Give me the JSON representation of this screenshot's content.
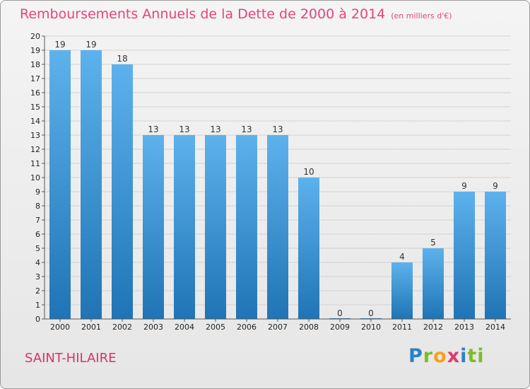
{
  "title": {
    "main": "Remboursements Annuels de la Dette de 2000 à 2014",
    "unit": "(en milliers d'€)"
  },
  "commune": "SAINT-HILAIRE",
  "logo": [
    "P",
    "r",
    "o",
    "x",
    "i",
    "ti"
  ],
  "colors": {
    "bar_light": "#5db2ec",
    "bar_dark": "#1f74b5",
    "title": "#e8437a"
  },
  "chart_data": {
    "type": "bar",
    "title": "Remboursements Annuels de la Dette de 2000 à 2014",
    "ylabel": "en milliers d'€",
    "xlabel": "",
    "ylim": [
      0,
      20
    ],
    "ytick_labels": [
      "0",
      "1",
      "2",
      "3",
      "4",
      "5",
      "6",
      "7",
      "8",
      "9",
      "10",
      "11",
      "12",
      "13",
      "14",
      "15",
      "16",
      "17",
      "18",
      "19",
      "20"
    ],
    "categories": [
      "2000",
      "2001",
      "2002",
      "2003",
      "2004",
      "2005",
      "2006",
      "2007",
      "2008",
      "2009",
      "2010",
      "2011",
      "2012",
      "2013",
      "2014"
    ],
    "values": [
      19,
      19,
      18,
      13,
      13,
      13,
      13,
      13,
      10,
      0,
      0,
      4,
      5,
      9,
      9
    ],
    "grid": true
  }
}
